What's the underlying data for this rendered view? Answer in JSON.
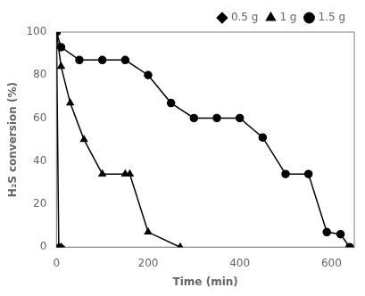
{
  "chart_data": {
    "type": "line",
    "xlabel": "Time (min)",
    "ylabel": "H₂S conversion (%)",
    "xlim": [
      0,
      650
    ],
    "ylim": [
      0,
      100
    ],
    "xticks": [
      0,
      200,
      400,
      600
    ],
    "yticks": [
      0,
      20,
      40,
      60,
      80,
      100
    ],
    "grid": false,
    "legend": "upper right",
    "series": [
      {
        "name": "0.5 g",
        "color": "black",
        "marker": "diamond",
        "x": [
          0,
          5,
          10
        ],
        "values": [
          100,
          0,
          0
        ]
      },
      {
        "name": "1 g",
        "color": "black",
        "marker": "triangle",
        "x": [
          0,
          10,
          30,
          60,
          100,
          150,
          160,
          200,
          270
        ],
        "values": [
          100,
          84,
          67,
          50,
          34,
          34,
          34,
          7,
          0
        ]
      },
      {
        "name": "1.5 g",
        "color": "black",
        "marker": "circle",
        "x": [
          0,
          10,
          50,
          100,
          150,
          200,
          250,
          300,
          350,
          400,
          450,
          500,
          550,
          590,
          620,
          640
        ],
        "values": [
          100,
          93,
          87,
          87,
          87,
          80,
          67,
          60,
          60,
          60,
          51,
          34,
          34,
          7,
          6,
          0
        ]
      }
    ]
  }
}
